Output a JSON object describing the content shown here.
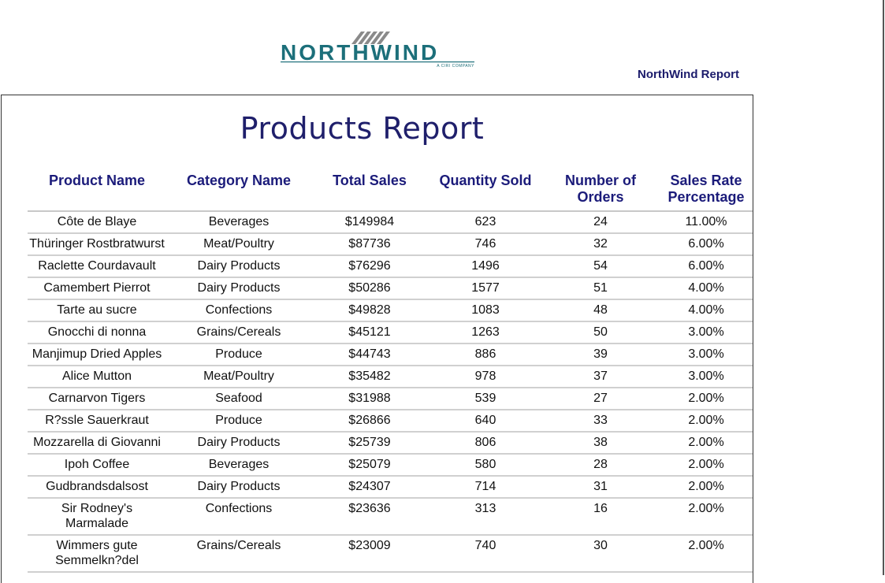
{
  "logo": {
    "text": "NORTHWIND",
    "tagline": "A CIRI COMPANY",
    "colors": {
      "word": "#1c6f7a",
      "swoosh": "#8a8a8a"
    }
  },
  "header": {
    "report_tag": "NorthWind Report"
  },
  "report": {
    "title": "Products Report",
    "columns": [
      "Product Name",
      "Category Name",
      "Total Sales",
      "Quantity Sold",
      "Number of Orders",
      "Sales Rate Percentage"
    ],
    "rows": [
      [
        "Côte de Blaye",
        "Beverages",
        "$149984",
        "623",
        "24",
        "11.00%"
      ],
      [
        "Thüringer Rostbratwurst",
        "Meat/Poultry",
        "$87736",
        "746",
        "32",
        "6.00%"
      ],
      [
        "Raclette Courdavault",
        "Dairy Products",
        "$76296",
        "1496",
        "54",
        "6.00%"
      ],
      [
        "Camembert Pierrot",
        "Dairy Products",
        "$50286",
        "1577",
        "51",
        "4.00%"
      ],
      [
        "Tarte au sucre",
        "Confections",
        "$49828",
        "1083",
        "48",
        "4.00%"
      ],
      [
        "Gnocchi di nonna",
        "Grains/Cereals",
        "$45121",
        "1263",
        "50",
        "3.00%"
      ],
      [
        "Manjimup Dried Apples",
        "Produce",
        "$44743",
        "886",
        "39",
        "3.00%"
      ],
      [
        "Alice Mutton",
        "Meat/Poultry",
        "$35482",
        "978",
        "37",
        "3.00%"
      ],
      [
        "Carnarvon Tigers",
        "Seafood",
        "$31988",
        "539",
        "27",
        "2.00%"
      ],
      [
        "R?ssle Sauerkraut",
        "Produce",
        "$26866",
        "640",
        "33",
        "2.00%"
      ],
      [
        "Mozzarella di Giovanni",
        "Dairy Products",
        "$25739",
        "806",
        "38",
        "2.00%"
      ],
      [
        "Ipoh Coffee",
        "Beverages",
        "$25079",
        "580",
        "28",
        "2.00%"
      ],
      [
        "Gudbrandsdalsost",
        "Dairy Products",
        "$24307",
        "714",
        "31",
        "2.00%"
      ],
      [
        "Sir Rodney's Marmalade",
        "Confections",
        "$23636",
        "313",
        "16",
        "2.00%"
      ],
      [
        "Wimmers gute Semmelkn?del",
        "Grains/Cereals",
        "$23009",
        "740",
        "30",
        "2.00%"
      ]
    ]
  }
}
